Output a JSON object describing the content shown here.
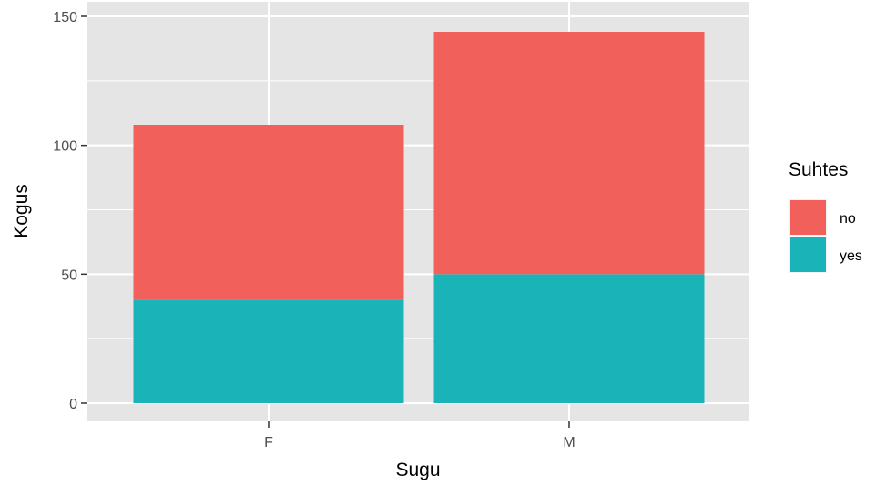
{
  "chart_data": {
    "type": "bar",
    "stacked": true,
    "categories": [
      "F",
      "M"
    ],
    "series": [
      {
        "name": "yes",
        "values": [
          40,
          50
        ],
        "color": "#1AB3B8"
      },
      {
        "name": "no",
        "values": [
          68,
          94
        ],
        "color": "#F2605C"
      }
    ],
    "totals": [
      108,
      144
    ],
    "xlabel": "Sugu",
    "ylabel": "Kogus",
    "ylim": [
      0,
      150
    ],
    "yticks": [
      0,
      50,
      100,
      150
    ],
    "grid": true,
    "legend": {
      "title": "Suhtes",
      "placement": "right",
      "order": [
        "no",
        "yes"
      ]
    },
    "panel_background": "#E5E5E5",
    "grid_color": "#FFFFFF"
  }
}
